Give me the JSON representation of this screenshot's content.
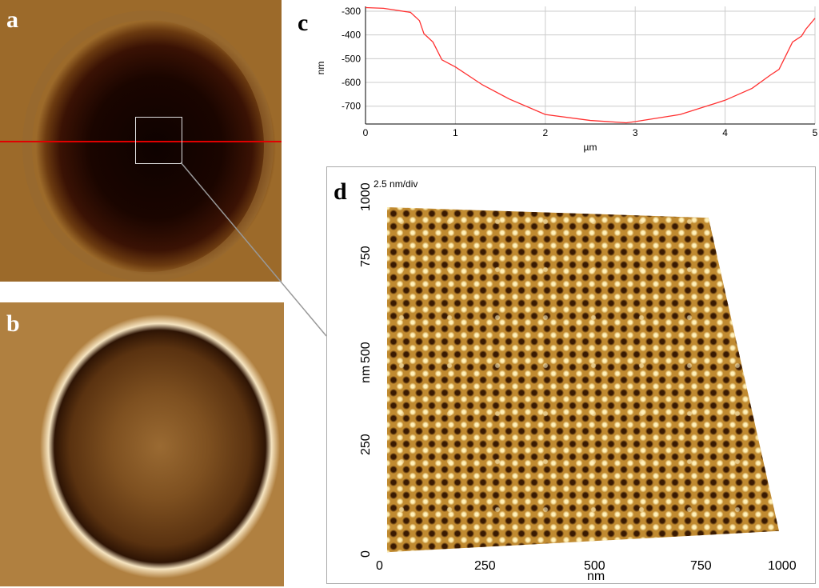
{
  "panels": {
    "a": "a",
    "b": "b",
    "c": "c",
    "d": "d"
  },
  "panel_d": {
    "zscale": "2.5 nm/div",
    "xlabel": "nm",
    "ylabel": "nm",
    "xticks": [
      "0",
      "250",
      "500",
      "750",
      "1000"
    ],
    "yticks": [
      "0",
      "250",
      "500",
      "750",
      "1000"
    ]
  },
  "colors": {
    "profile_line": "#ff3030",
    "scan_line": "#e00000"
  },
  "chart_data": {
    "type": "line",
    "title": "",
    "xlabel": "µm",
    "ylabel": "nm",
    "xlim": [
      0,
      5
    ],
    "ylim": [
      -775,
      -280
    ],
    "xticks": [
      "0",
      "1",
      "2",
      "3",
      "4",
      "5"
    ],
    "yticks": [
      "-300",
      "-400",
      "-500",
      "-600",
      "-700"
    ],
    "grid": true,
    "x": [
      0,
      0.2,
      0.5,
      0.6,
      0.65,
      0.75,
      0.85,
      1,
      1.3,
      1.6,
      2,
      2.5,
      2.9,
      3,
      3.5,
      4,
      4.3,
      4.5,
      4.6,
      4.75,
      4.85,
      4.9,
      5
    ],
    "y": [
      -285,
      -288,
      -305,
      -340,
      -395,
      -430,
      -505,
      -535,
      -610,
      -670,
      -735,
      -760,
      -770,
      -765,
      -735,
      -675,
      -625,
      -570,
      -545,
      -430,
      -405,
      -375,
      -330
    ]
  }
}
